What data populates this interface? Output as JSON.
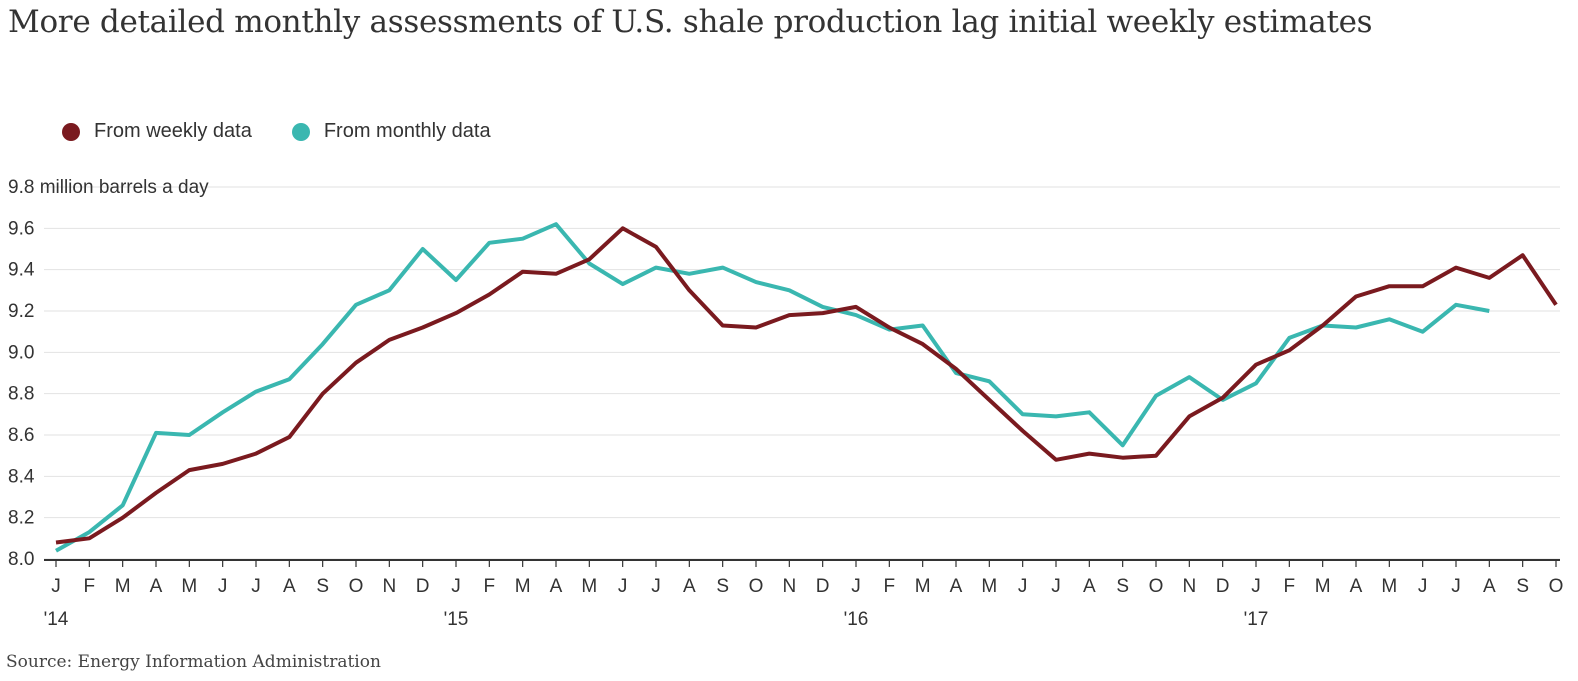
{
  "chart_data": {
    "type": "line",
    "title": "More detailed monthly assessments of U.S. shale production lag initial weekly estimates",
    "ylabel": "9.8 million barrels a day",
    "ylim": [
      8.0,
      9.8
    ],
    "yticks": [
      8.0,
      8.2,
      8.4,
      8.6,
      8.8,
      9.0,
      9.2,
      9.4,
      9.6
    ],
    "top_tick_label": "9.8 million barrels a day",
    "x_month_labels": [
      "J",
      "F",
      "M",
      "A",
      "M",
      "J",
      "J",
      "A",
      "S",
      "O",
      "N",
      "D",
      "J",
      "F",
      "M",
      "A",
      "M",
      "J",
      "J",
      "A",
      "S",
      "O",
      "N",
      "D",
      "J",
      "F",
      "M",
      "A",
      "M",
      "J",
      "J",
      "A",
      "S",
      "O",
      "N",
      "D",
      "J",
      "F",
      "M",
      "A",
      "M",
      "J",
      "J",
      "A",
      "S",
      "O"
    ],
    "year_labels": [
      {
        "label": "'14",
        "month_index": 0
      },
      {
        "label": "'15",
        "month_index": 12
      },
      {
        "label": "'16",
        "month_index": 24
      },
      {
        "label": "'17",
        "month_index": 36
      }
    ],
    "grid": true,
    "legend_position": "top-left",
    "series": [
      {
        "name": "From weekly data",
        "color": "#7a1a1f",
        "values": [
          8.08,
          8.1,
          8.2,
          8.32,
          8.43,
          8.46,
          8.51,
          8.59,
          8.8,
          8.95,
          9.06,
          9.12,
          9.19,
          9.28,
          9.39,
          9.38,
          9.45,
          9.6,
          9.51,
          9.3,
          9.13,
          9.12,
          9.18,
          9.19,
          9.22,
          9.12,
          9.04,
          8.92,
          8.77,
          8.62,
          8.48,
          8.51,
          8.49,
          8.5,
          8.69,
          8.78,
          8.94,
          9.01,
          9.13,
          9.27,
          9.32,
          9.32,
          9.41,
          9.36,
          9.47,
          9.23
        ]
      },
      {
        "name": "From monthly data",
        "color": "#3ab7b0",
        "values": [
          8.04,
          8.13,
          8.26,
          8.61,
          8.6,
          8.71,
          8.81,
          8.87,
          9.04,
          9.23,
          9.3,
          9.5,
          9.35,
          9.53,
          9.55,
          9.62,
          9.43,
          9.33,
          9.41,
          9.38,
          9.41,
          9.34,
          9.3,
          9.22,
          9.18,
          9.11,
          9.13,
          8.9,
          8.86,
          8.7,
          8.69,
          8.71,
          8.55,
          8.79,
          8.88,
          8.77,
          8.85,
          9.07,
          9.13,
          9.12,
          9.16,
          9.1,
          9.23,
          9.2
        ]
      }
    ]
  },
  "title": "More detailed monthly assessments of U.S. shale production lag initial weekly estimates",
  "legend": {
    "weekly_label": "From weekly data",
    "monthly_label": "From monthly data",
    "weekly_color": "#7a1a1f",
    "monthly_color": "#3ab7b0"
  },
  "source": "Source: Energy Information Administration"
}
